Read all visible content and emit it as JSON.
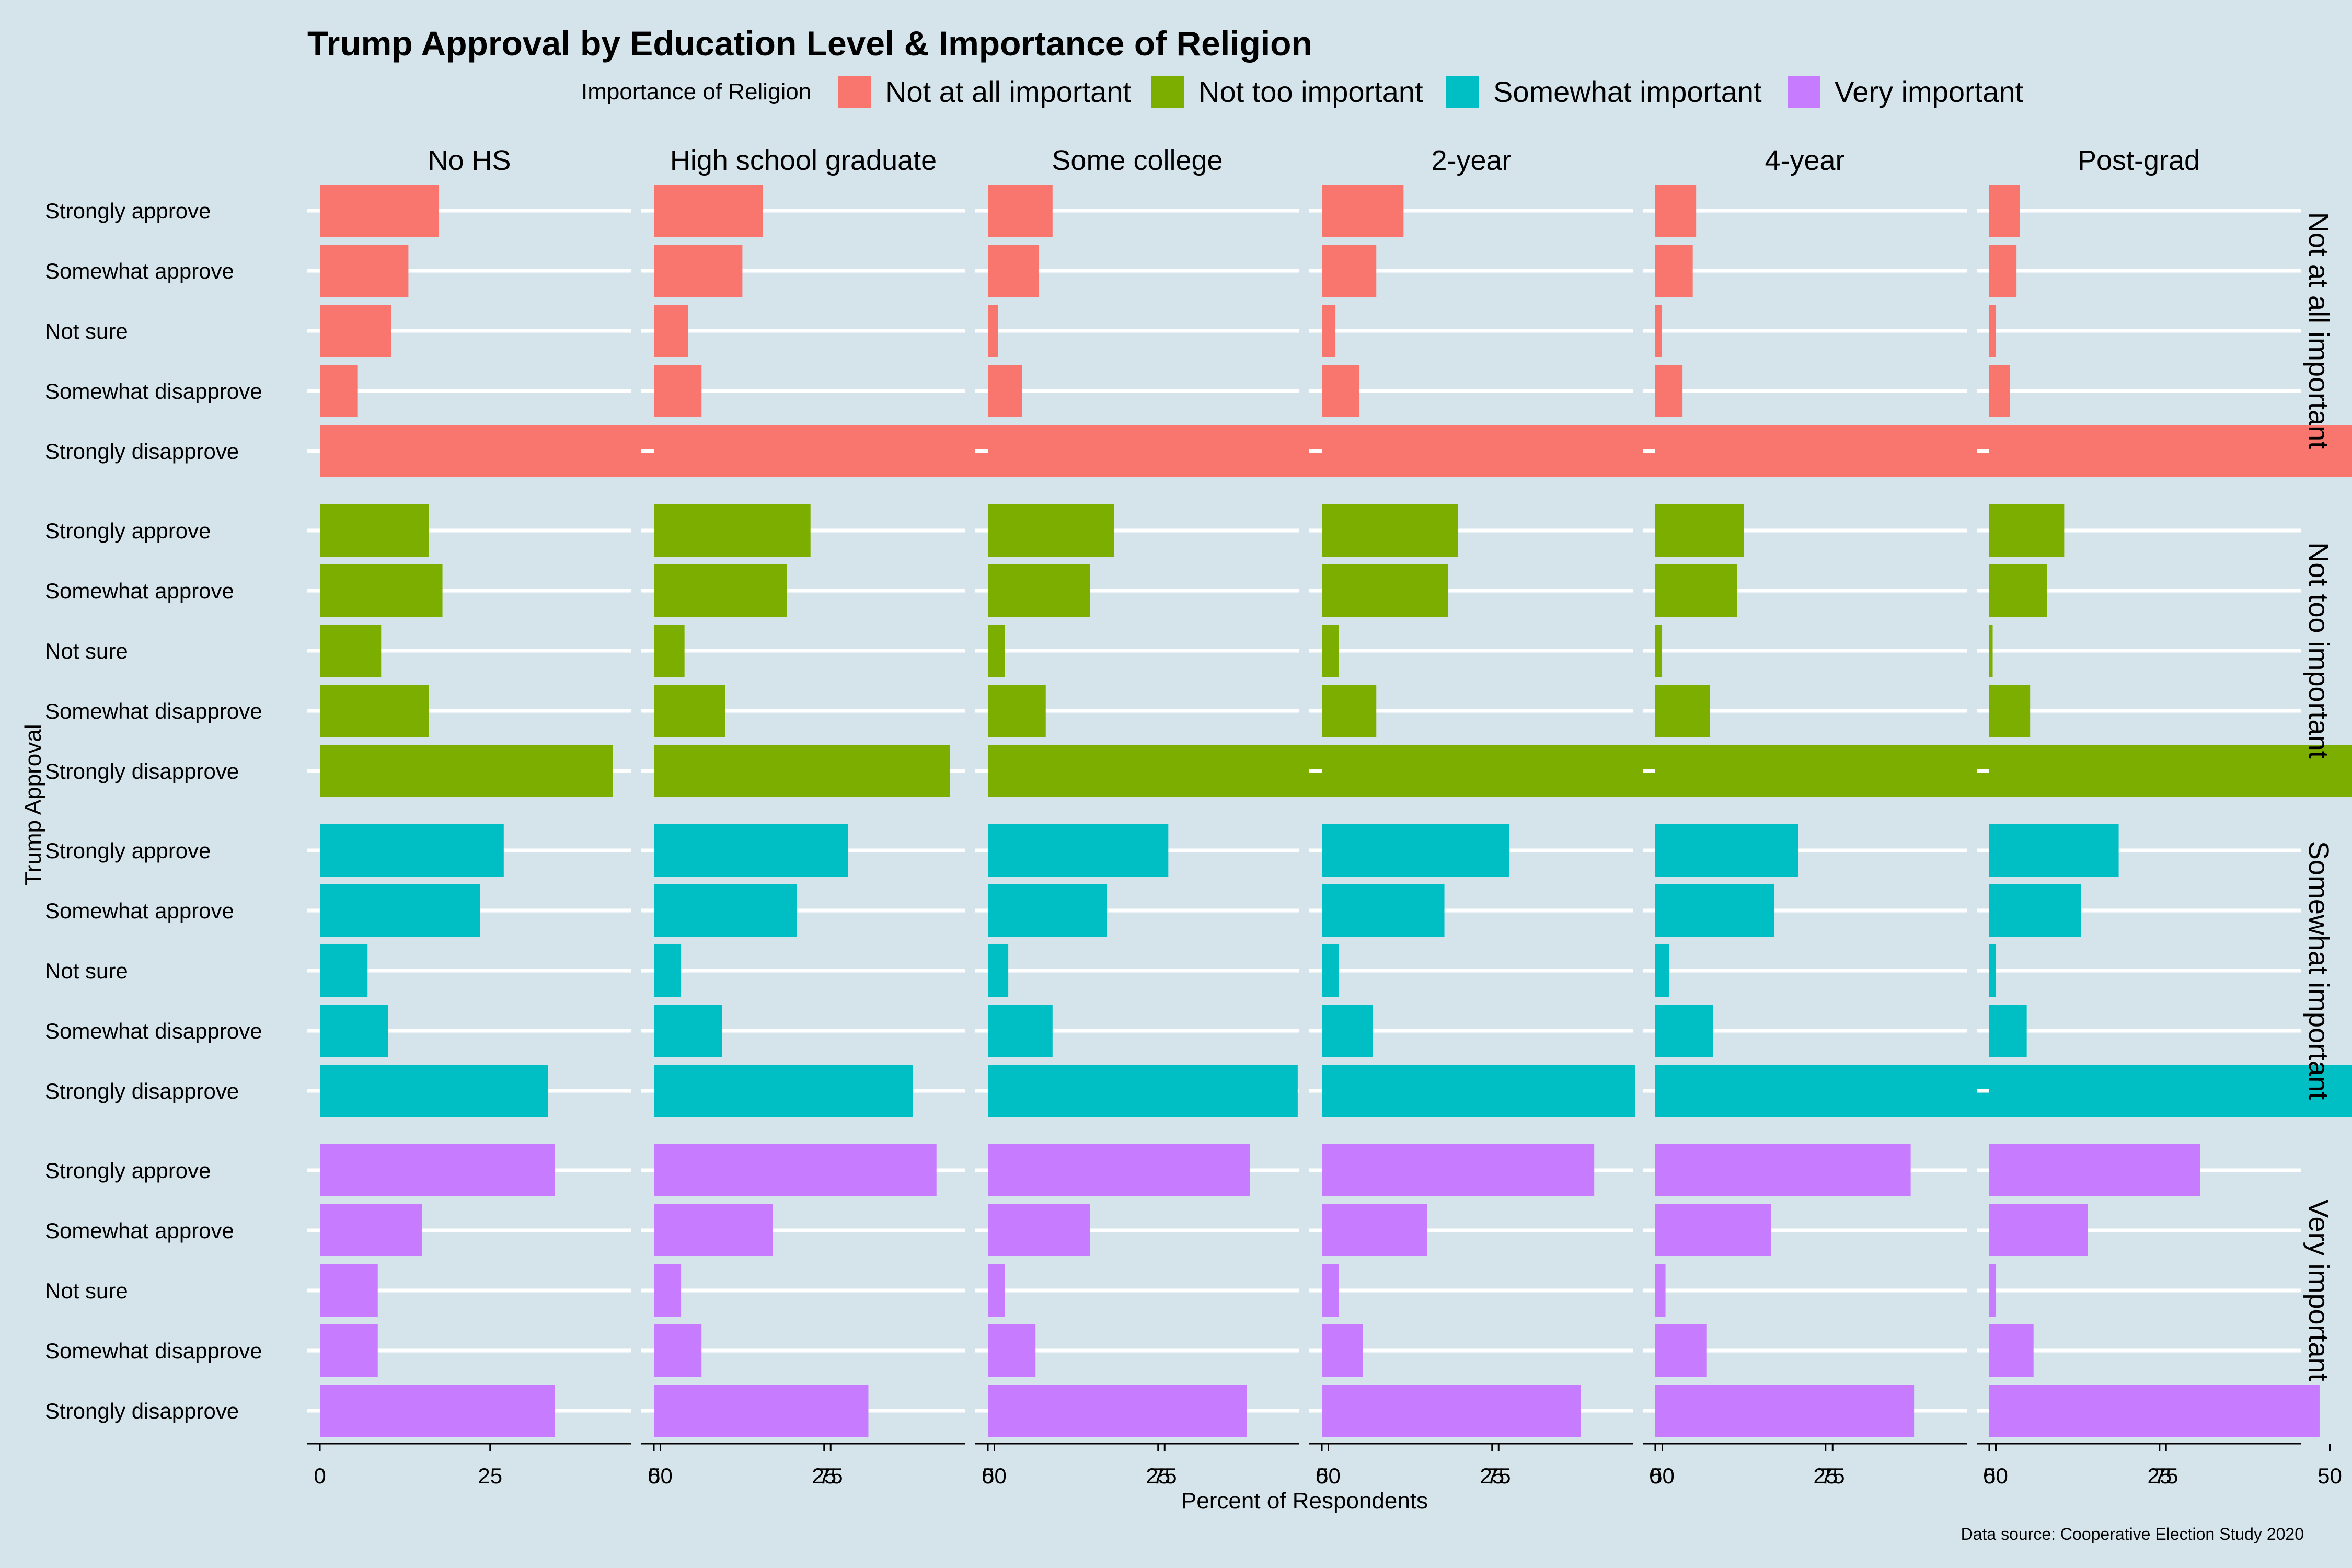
{
  "chart_data": {
    "type": "bar",
    "orientation": "horizontal",
    "title": "Trump Approval by Education Level & Importance of Religion",
    "xlabel": "Percent of Respondents",
    "ylabel": "Trump Approval",
    "caption": "Data source: Cooperative Election Study 2020",
    "legend_title": "Importance of Religion",
    "legend_position": "top",
    "xlim": [
      0,
      90
    ],
    "x_ticks": [
      0,
      25,
      50,
      75
    ],
    "x_tick_labels": [
      "0",
      "25",
      "50",
      "75"
    ],
    "grid": true,
    "columns": [
      "No HS",
      "High school graduate",
      "Some college",
      "2-year",
      "4-year",
      "Post-grad"
    ],
    "rows": [
      "Not at all important",
      "Not too important",
      "Somewhat important",
      "Very important"
    ],
    "categories": [
      "Strongly approve",
      "Somewhat approve",
      "Not sure",
      "Somewhat disapprove",
      "Strongly disapprove"
    ],
    "colors": [
      "#f8766d",
      "#7cae00",
      "#00bfc4",
      "#c77cff"
    ],
    "values": [
      [
        [
          17.5,
          13,
          10.5,
          5.5,
          54
        ],
        [
          16,
          13,
          5,
          7,
          59
        ],
        [
          9.5,
          7.5,
          1.5,
          5,
          77
        ],
        [
          12,
          8,
          2,
          5.5,
          73
        ],
        [
          6,
          5.5,
          1,
          4,
          85
        ],
        [
          4.5,
          4,
          1,
          3,
          89
        ]
      ],
      [
        [
          16,
          18,
          9,
          16,
          43
        ],
        [
          23,
          19.5,
          4.5,
          10.5,
          43.5
        ],
        [
          18.5,
          15,
          2.5,
          8.5,
          57
        ],
        [
          20,
          18.5,
          2.5,
          8,
          52.5
        ],
        [
          13,
          12,
          1,
          8,
          67
        ],
        [
          11,
          8.5,
          0.5,
          6,
          76
        ]
      ],
      [
        [
          27,
          23.5,
          7,
          10,
          33.5
        ],
        [
          28.5,
          21,
          4,
          10,
          38
        ],
        [
          26.5,
          17.5,
          3,
          9.5,
          45.5
        ],
        [
          27.5,
          18,
          2.5,
          7.5,
          46
        ],
        [
          21,
          17.5,
          2,
          8.5,
          53
        ],
        [
          19,
          13.5,
          1,
          5.5,
          62.5
        ]
      ],
      [
        [
          34.5,
          15,
          8.5,
          8.5,
          34.5
        ],
        [
          41.5,
          17.5,
          4,
          7,
          31.5
        ],
        [
          38.5,
          15,
          2.5,
          7,
          38
        ],
        [
          40,
          15.5,
          2.5,
          6,
          38
        ],
        [
          37.5,
          17,
          1.5,
          7.5,
          38
        ],
        [
          31,
          14.5,
          1,
          6.5,
          48.5
        ]
      ]
    ]
  }
}
